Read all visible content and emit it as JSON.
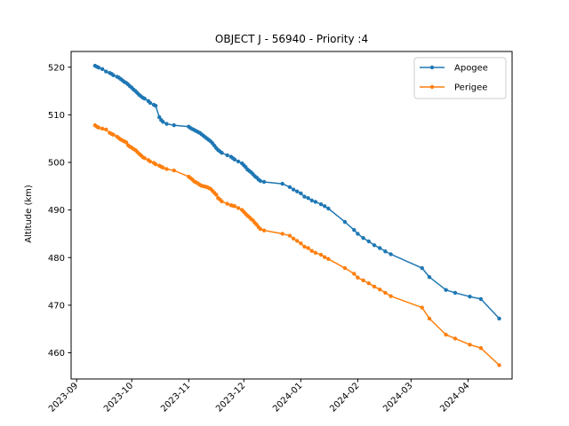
{
  "chart_data": {
    "type": "line",
    "title": "OBJECT J - 56940 - Priority :4",
    "xlabel": "",
    "ylabel": "Altitude (km)",
    "xlim": [
      "2023-08-29",
      "2024-04-25"
    ],
    "ylim": [
      454.5,
      523.3
    ],
    "yticks": [
      460,
      470,
      480,
      490,
      500,
      510,
      520
    ],
    "xticks": [
      "2023-09",
      "2023-10",
      "2023-11",
      "2023-12",
      "2024-01",
      "2024-02",
      "2024-03",
      "2024-04"
    ],
    "legend": "top-right",
    "grid": false,
    "series": [
      {
        "name": "Apogee",
        "color": "#1f77b4",
        "x": [
          "2023-09-11",
          "2023-09-12",
          "2023-09-13",
          "2023-09-15",
          "2023-09-17",
          "2023-09-19",
          "2023-09-20",
          "2023-09-21",
          "2023-09-23",
          "2023-09-24",
          "2023-09-25",
          "2023-09-26",
          "2023-09-27",
          "2023-09-28",
          "2023-09-29",
          "2023-09-30",
          "2023-10-01",
          "2023-10-02",
          "2023-10-03",
          "2023-10-04",
          "2023-10-05",
          "2023-10-06",
          "2023-10-07",
          "2023-10-08",
          "2023-10-10",
          "2023-10-11",
          "2023-10-13",
          "2023-10-14",
          "2023-10-16",
          "2023-10-17",
          "2023-10-18",
          "2023-10-20",
          "2023-10-24",
          "2023-11-01",
          "2023-11-02",
          "2023-11-03",
          "2023-11-04",
          "2023-11-05",
          "2023-11-06",
          "2023-11-07",
          "2023-11-08",
          "2023-11-09",
          "2023-11-10",
          "2023-11-11",
          "2023-11-12",
          "2023-11-13",
          "2023-11-14",
          "2023-11-15",
          "2023-11-16",
          "2023-11-17",
          "2023-11-18",
          "2023-11-19",
          "2023-11-22",
          "2023-11-24",
          "2023-11-25",
          "2023-11-26",
          "2023-11-28",
          "2023-11-30",
          "2023-12-01",
          "2023-12-02",
          "2023-12-03",
          "2023-12-04",
          "2023-12-05",
          "2023-12-06",
          "2023-12-07",
          "2023-12-08",
          "2023-12-09",
          "2023-12-10",
          "2023-12-12",
          "2023-12-22",
          "2023-12-26",
          "2023-12-28",
          "2023-12-30",
          "2024-01-01",
          "2024-01-03",
          "2024-01-05",
          "2024-01-07",
          "2024-01-09",
          "2024-01-12",
          "2024-01-14",
          "2024-01-16",
          "2024-01-25",
          "2024-01-30",
          "2024-02-01",
          "2024-02-04",
          "2024-02-07",
          "2024-02-10",
          "2024-02-13",
          "2024-02-16",
          "2024-02-19",
          "2024-03-07",
          "2024-03-11",
          "2024-03-20",
          "2024-03-25",
          "2024-04-02",
          "2024-04-08",
          "2024-04-18"
        ],
        "values": [
          520.3,
          520.1,
          519.9,
          519.6,
          519.1,
          518.8,
          518.6,
          518.3,
          518.0,
          517.8,
          517.5,
          517.2,
          516.9,
          516.7,
          516.4,
          516.0,
          515.7,
          515.3,
          515.0,
          514.6,
          514.2,
          513.9,
          513.6,
          513.4,
          512.9,
          512.5,
          512.1,
          511.9,
          509.5,
          508.9,
          508.5,
          508.1,
          507.8,
          507.5,
          507.2,
          507.0,
          506.8,
          506.6,
          506.4,
          506.2,
          505.9,
          505.6,
          505.3,
          505.0,
          504.7,
          504.4,
          504.0,
          503.5,
          503.0,
          502.6,
          502.3,
          502.0,
          501.5,
          501.2,
          500.9,
          500.6,
          500.2,
          499.8,
          499.4,
          499.0,
          498.5,
          498.2,
          497.9,
          497.5,
          497.1,
          496.8,
          496.4,
          496.1,
          495.9,
          495.5,
          494.8,
          494.3,
          493.9,
          493.5,
          492.8,
          492.5,
          492.0,
          491.7,
          491.2,
          490.8,
          490.3,
          487.5,
          485.8,
          485.0,
          484.1,
          483.4,
          482.6,
          482.0,
          481.3,
          480.7,
          477.8,
          475.9,
          473.2,
          472.6,
          471.8,
          471.3,
          467.2
        ]
      },
      {
        "name": "Perigee",
        "color": "#ff7f0e",
        "x": [
          "2023-09-11",
          "2023-09-12",
          "2023-09-13",
          "2023-09-15",
          "2023-09-17",
          "2023-09-19",
          "2023-09-20",
          "2023-09-21",
          "2023-09-23",
          "2023-09-24",
          "2023-09-25",
          "2023-09-26",
          "2023-09-27",
          "2023-09-28",
          "2023-09-29",
          "2023-09-30",
          "2023-10-01",
          "2023-10-02",
          "2023-10-03",
          "2023-10-04",
          "2023-10-05",
          "2023-10-06",
          "2023-10-07",
          "2023-10-08",
          "2023-10-10",
          "2023-10-11",
          "2023-10-13",
          "2023-10-14",
          "2023-10-16",
          "2023-10-17",
          "2023-10-18",
          "2023-10-20",
          "2023-10-24",
          "2023-11-01",
          "2023-11-02",
          "2023-11-03",
          "2023-11-04",
          "2023-11-05",
          "2023-11-06",
          "2023-11-07",
          "2023-11-08",
          "2023-11-09",
          "2023-11-10",
          "2023-11-11",
          "2023-11-12",
          "2023-11-13",
          "2023-11-14",
          "2023-11-15",
          "2023-11-16",
          "2023-11-17",
          "2023-11-18",
          "2023-11-19",
          "2023-11-22",
          "2023-11-24",
          "2023-11-25",
          "2023-11-26",
          "2023-11-28",
          "2023-11-30",
          "2023-12-01",
          "2023-12-02",
          "2023-12-03",
          "2023-12-04",
          "2023-12-05",
          "2023-12-06",
          "2023-12-07",
          "2023-12-08",
          "2023-12-09",
          "2023-12-10",
          "2023-12-12",
          "2023-12-22",
          "2023-12-26",
          "2023-12-28",
          "2023-12-30",
          "2024-01-01",
          "2024-01-03",
          "2024-01-05",
          "2024-01-07",
          "2024-01-09",
          "2024-01-12",
          "2024-01-14",
          "2024-01-16",
          "2024-01-25",
          "2024-01-30",
          "2024-02-01",
          "2024-02-04",
          "2024-02-07",
          "2024-02-10",
          "2024-02-13",
          "2024-02-16",
          "2024-02-19",
          "2024-03-07",
          "2024-03-11",
          "2024-03-20",
          "2024-03-25",
          "2024-04-02",
          "2024-04-08",
          "2024-04-18"
        ],
        "values": [
          507.8,
          507.5,
          507.3,
          507.1,
          506.9,
          506.2,
          506.0,
          505.8,
          505.4,
          505.1,
          504.8,
          504.6,
          504.4,
          504.2,
          503.6,
          503.3,
          503.1,
          502.8,
          502.6,
          502.2,
          501.8,
          501.5,
          501.1,
          500.9,
          500.5,
          500.2,
          499.9,
          499.6,
          499.3,
          499.1,
          498.9,
          498.6,
          498.3,
          497.0,
          496.7,
          496.4,
          496.0,
          495.8,
          495.6,
          495.3,
          495.1,
          495.0,
          494.9,
          494.8,
          494.6,
          494.4,
          494.0,
          493.6,
          493.2,
          492.5,
          492.2,
          491.8,
          491.3,
          491.0,
          490.9,
          490.8,
          490.4,
          490.0,
          489.6,
          489.2,
          488.8,
          488.5,
          488.1,
          487.8,
          487.3,
          486.9,
          486.4,
          486.0,
          485.7,
          485.0,
          484.6,
          484.0,
          483.5,
          483.0,
          482.3,
          482.0,
          481.4,
          481.0,
          480.6,
          480.1,
          479.7,
          477.8,
          476.6,
          475.8,
          475.2,
          474.6,
          473.9,
          473.3,
          472.6,
          471.9,
          469.5,
          467.2,
          463.8,
          463.0,
          461.7,
          461.0,
          457.4
        ]
      }
    ]
  }
}
